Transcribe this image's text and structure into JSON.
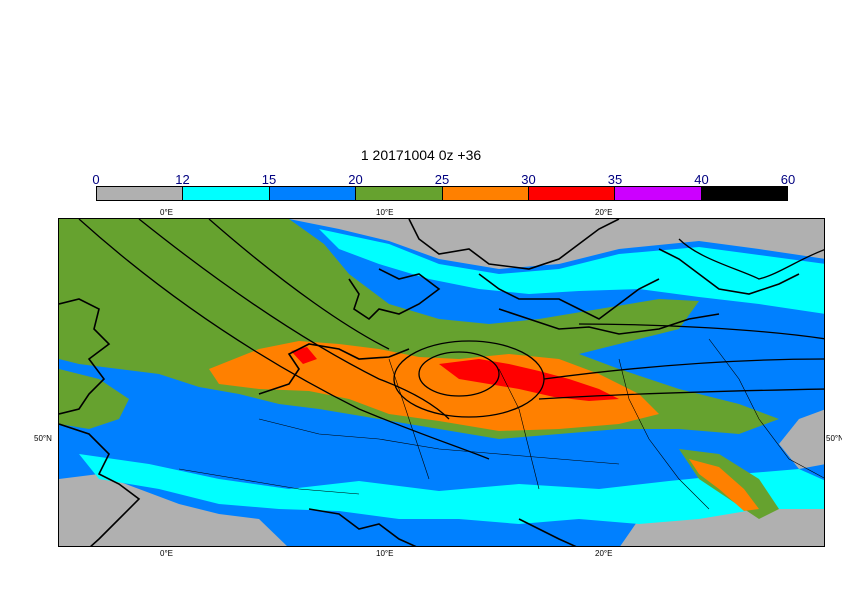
{
  "title": "1 20171004 0z +36",
  "legend": {
    "labels": [
      "0",
      "12",
      "15",
      "20",
      "25",
      "30",
      "35",
      "40",
      "60"
    ],
    "colors": [
      "#b0b0b0",
      "#00ffff",
      "#0080ff",
      "#66a22f",
      "#ff8000",
      "#ff0000",
      "#cc00ff",
      "#000000"
    ]
  },
  "axes": {
    "lon_top": [
      "0°E",
      "10°E",
      "20°E"
    ],
    "lon_bottom": [
      "0°E",
      "10°E",
      "20°E"
    ],
    "lat_left": "50°N",
    "lat_right": "50°N"
  },
  "colors": {
    "gray": "#b0b0b0",
    "cyan": "#00ffff",
    "blue": "#0080ff",
    "green": "#66a22f",
    "orange": "#ff8000",
    "red": "#ff0000"
  }
}
